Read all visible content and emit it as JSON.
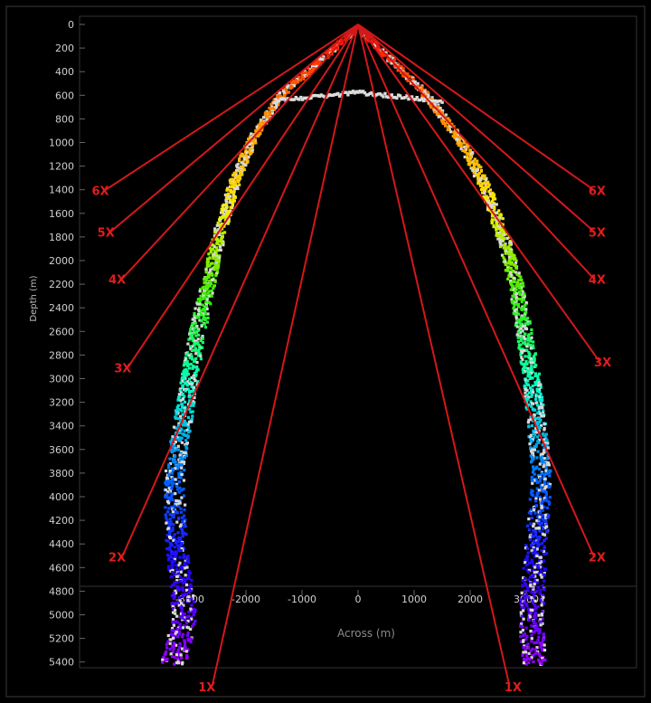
{
  "chart_data": {
    "type": "scatter",
    "title": "",
    "xlabel": "Across (m)",
    "ylabel": "Depth (m)",
    "xlim": [
      -3700,
      3700
    ],
    "ylim": [
      0,
      5500
    ],
    "y_ticks": [
      0,
      200,
      400,
      600,
      800,
      1000,
      1200,
      1400,
      1600,
      1800,
      2000,
      2200,
      2400,
      2600,
      2800,
      3000,
      3200,
      3400,
      3600,
      3800,
      4000,
      4200,
      4400,
      4600,
      4800,
      5000,
      5200,
      5400
    ],
    "x_ticks": [
      -3000,
      -2000,
      -1000,
      0,
      1000,
      2000,
      3000
    ],
    "x_tick_labels": [
      "-3000",
      "-2000",
      "-1000",
      "0",
      "1000",
      "2000",
      "3000"
    ],
    "color_scale": [
      "#ff0000",
      "#ff8800",
      "#ffee00",
      "#33ee00",
      "#00ffcc",
      "#0066ff",
      "#2200ff",
      "#9900ff"
    ],
    "swath_profile": {
      "depth": [
        600,
        1000,
        1400,
        1800,
        2200,
        2600,
        3000,
        3400,
        3800,
        4200,
        4600,
        5000,
        5400
      ],
      "port_edge_across": [
        -1450,
        -2000,
        -2350,
        -2600,
        -2800,
        -3000,
        -3150,
        -3300,
        -3450,
        -3450,
        -3400,
        -3300,
        -3500
      ],
      "starboard_edge_across": [
        1300,
        1950,
        2400,
        2700,
        2950,
        3100,
        3250,
        3350,
        3450,
        3400,
        3350,
        3300,
        3350
      ]
    },
    "coverage_rays": [
      {
        "label": "6X",
        "port_end": [
          -4500,
          1400
        ],
        "starboard_end": [
          4200,
          1400
        ]
      },
      {
        "label": "5X",
        "port_end": [
          -4400,
          1750
        ],
        "starboard_end": [
          4200,
          1750
        ]
      },
      {
        "label": "4X",
        "port_end": [
          -4200,
          2150
        ],
        "starboard_end": [
          4200,
          2150
        ]
      },
      {
        "label": "3X",
        "port_end": [
          -4100,
          2900
        ],
        "starboard_end": [
          4300,
          2850
        ]
      },
      {
        "label": "2X",
        "port_end": [
          -4200,
          4500
        ],
        "starboard_end": [
          4200,
          4500
        ]
      },
      {
        "label": "1X",
        "port_end": [
          -2600,
          5600
        ],
        "starboard_end": [
          2700,
          5600
        ]
      }
    ]
  }
}
